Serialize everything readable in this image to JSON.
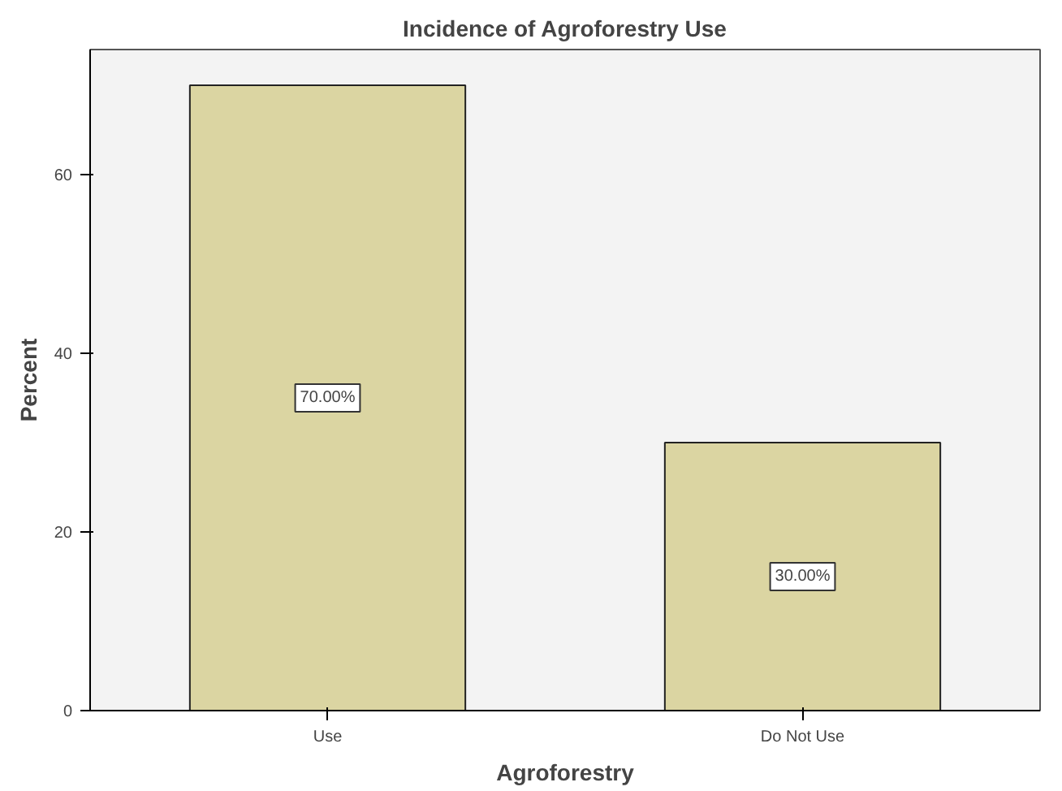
{
  "chart_data": {
    "type": "bar",
    "title": "Incidence of Agroforestry Use",
    "xlabel": "Agroforestry",
    "ylabel": "Percent",
    "categories": [
      "Use",
      "Do Not Use"
    ],
    "values": [
      70,
      30
    ],
    "value_labels": [
      "70.00%",
      "30.00%"
    ],
    "color": "#dbd5a2",
    "ylim": [
      0,
      74
    ],
    "yticks": [
      0,
      20,
      40,
      60
    ],
    "grid": false
  }
}
